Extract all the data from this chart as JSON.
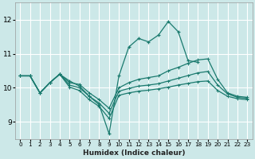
{
  "xlabel": "Humidex (Indice chaleur)",
  "bg_color": "#cce8e8",
  "grid_color": "#ffffff",
  "line_color": "#1a7a6e",
  "xlim": [
    -0.5,
    23.5
  ],
  "ylim": [
    8.5,
    12.5
  ],
  "yticks": [
    9,
    10,
    11,
    12
  ],
  "xticks": [
    0,
    1,
    2,
    3,
    4,
    5,
    6,
    7,
    8,
    9,
    10,
    11,
    12,
    13,
    14,
    15,
    16,
    17,
    18,
    19,
    20,
    21,
    22,
    23
  ],
  "curve1_x": [
    0,
    1,
    2,
    3,
    4,
    5,
    6,
    7,
    8,
    9,
    10,
    11,
    12,
    13,
    14,
    15,
    16,
    17,
    18
  ],
  "curve1_y": [
    10.35,
    10.35,
    9.85,
    10.15,
    10.4,
    10.2,
    10.05,
    9.75,
    9.5,
    8.65,
    10.35,
    11.2,
    11.45,
    11.35,
    11.55,
    11.95,
    11.65,
    10.8,
    10.75
  ],
  "curve2_x": [
    0,
    1,
    2,
    3,
    4,
    5,
    6,
    7,
    8,
    9,
    10,
    11,
    12,
    13,
    14,
    15,
    16,
    17,
    18,
    19,
    20,
    21,
    22,
    23
  ],
  "curve2_y": [
    10.35,
    10.35,
    9.85,
    10.15,
    10.4,
    10.15,
    10.1,
    9.85,
    9.65,
    9.4,
    10.0,
    10.15,
    10.25,
    10.3,
    10.35,
    10.5,
    10.6,
    10.72,
    10.82,
    10.85,
    10.25,
    9.85,
    9.75,
    9.72
  ],
  "curve3_x": [
    0,
    1,
    2,
    3,
    4,
    5,
    6,
    7,
    8,
    9,
    10,
    11,
    12,
    13,
    14,
    15,
    16,
    17,
    18,
    19,
    20,
    21,
    22,
    23
  ],
  "curve3_y": [
    10.35,
    10.35,
    9.85,
    10.15,
    10.4,
    10.08,
    10.0,
    9.75,
    9.55,
    9.25,
    9.9,
    9.98,
    10.05,
    10.08,
    10.12,
    10.2,
    10.28,
    10.36,
    10.44,
    10.48,
    10.08,
    9.82,
    9.72,
    9.69
  ],
  "curve4_x": [
    0,
    1,
    2,
    3,
    4,
    5,
    6,
    7,
    8,
    9,
    10,
    11,
    12,
    13,
    14,
    15,
    16,
    17,
    18,
    19,
    20,
    21,
    22,
    23
  ],
  "curve4_y": [
    10.35,
    10.35,
    9.85,
    10.15,
    10.4,
    10.02,
    9.92,
    9.65,
    9.45,
    9.1,
    9.78,
    9.85,
    9.9,
    9.93,
    9.97,
    10.02,
    10.08,
    10.13,
    10.18,
    10.2,
    9.92,
    9.75,
    9.68,
    9.65
  ]
}
